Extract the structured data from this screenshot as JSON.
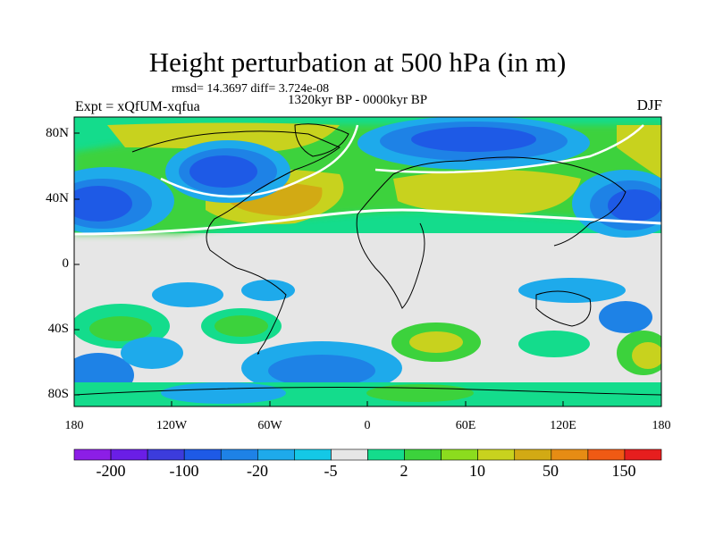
{
  "title": "Height perturbation at 500 hPa (in m)",
  "stats": "rmsd= 14.3697 diff= 3.724e-08",
  "period": "1320kyr BP - 0000kyr BP",
  "experiment": "Expt = xQfUM-xqfua",
  "season": "DJF",
  "axes": {
    "lat_labels": [
      "80N",
      "40N",
      "0",
      "40S",
      "80S"
    ],
    "lon_labels": [
      "180",
      "120W",
      "60W",
      "0",
      "60E",
      "120E",
      "180"
    ]
  },
  "colorbar": {
    "labels": [
      "-200",
      "-100",
      "-20",
      "-5",
      "2",
      "10",
      "50",
      "150"
    ],
    "colors": [
      "#8c1ee6",
      "#6a1ee6",
      "#3c3cdc",
      "#1e5ae6",
      "#1e82e6",
      "#1eaaeb",
      "#14c8e6",
      "#e6e6e6",
      "#14dc8c",
      "#3cd23c",
      "#8cdc1e",
      "#c8d21e",
      "#d2aa14",
      "#e68c14",
      "#f05a14",
      "#e61e1e"
    ]
  }
}
